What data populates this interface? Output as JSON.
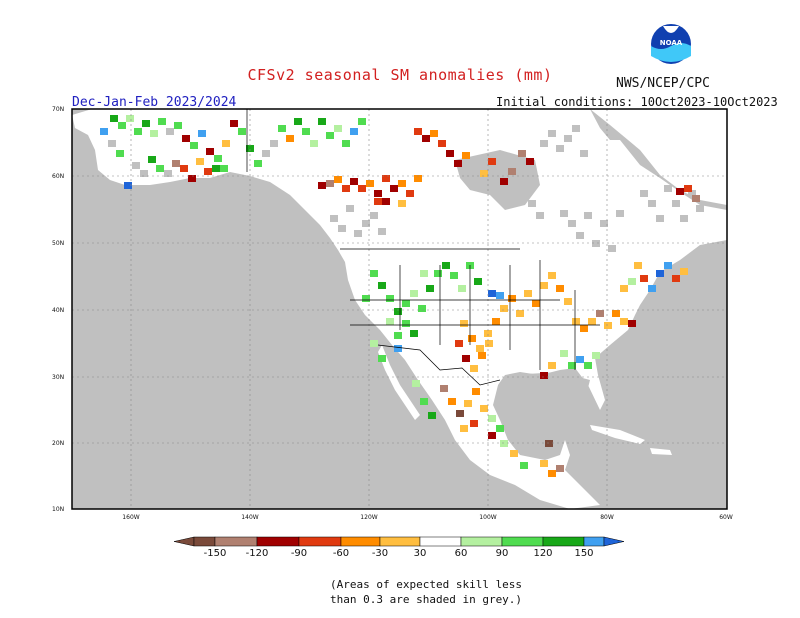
{
  "header": {
    "title": "CFSv2 seasonal SM anomalies (mm)",
    "agency": "NWS/NCEP/CPC",
    "season": "Dec-Jan-Feb 2023/2024",
    "initial_conditions": "Initial conditions: 10Oct2023-10Oct2023"
  },
  "logo": {
    "text": "NOAA",
    "icon": "noaa-logo"
  },
  "map": {
    "region": "North America",
    "lat_labels": [
      "70N",
      "60N",
      "50N",
      "40N",
      "30N",
      "20N",
      "10N"
    ],
    "lon_labels": [
      "160W",
      "140W",
      "120W",
      "100W",
      "80W",
      "60W"
    ],
    "land_color": "#ffffff",
    "ocean_color": "#c0c0c0",
    "low_skill_color": "#c0c0c0"
  },
  "colorbar": {
    "labels": [
      "-150",
      "-120",
      "-90",
      "-60",
      "-30",
      "30",
      "60",
      "90",
      "120",
      "150"
    ],
    "colors": [
      "#7a4a3a",
      "#b08070",
      "#a00000",
      "#e03a10",
      "#ff8c00",
      "#ffbe40",
      "#ffffff",
      "#b4f0a0",
      "#50dc50",
      "#18a818",
      "#40a0f0",
      "#1e64d8"
    ]
  },
  "footnote": {
    "line1": "(Areas of expected skill less",
    "line2": "than 0.3 are shaded in grey.)"
  }
}
